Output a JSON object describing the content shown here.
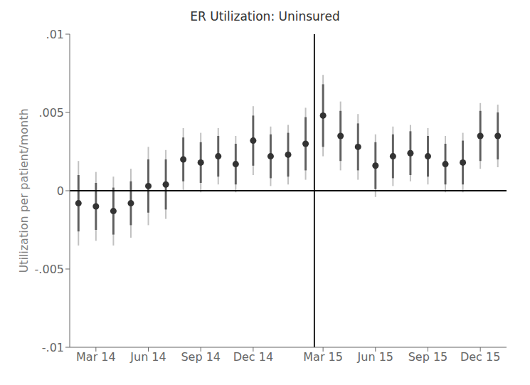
{
  "chart_data": {
    "type": "scatter",
    "title": "ER Utilization: Uninsured",
    "ylabel": "Utilization per patient/month",
    "x": [
      1,
      2,
      3,
      4,
      5,
      6,
      7,
      8,
      9,
      10,
      11,
      12,
      13,
      14,
      15,
      16,
      17,
      18,
      19,
      20,
      21,
      22,
      23,
      24,
      25
    ],
    "values": [
      -0.0008,
      -0.001,
      -0.0013,
      -0.0008,
      0.0003,
      0.0004,
      0.002,
      0.0018,
      0.0022,
      0.0017,
      0.0032,
      0.0022,
      0.0023,
      0.003,
      0.0048,
      0.0035,
      0.0028,
      0.0016,
      0.0022,
      0.0024,
      0.0022,
      0.0017,
      0.0018,
      0.0035,
      0.0035
    ],
    "ci95_lo": [
      -0.0035,
      -0.0032,
      -0.0035,
      -0.003,
      -0.0022,
      -0.0018,
      0.0,
      -0.0001,
      0.0004,
      -0.0001,
      0.001,
      0.0003,
      0.0004,
      0.0007,
      0.0022,
      0.0013,
      0.0007,
      -0.0004,
      0.0003,
      0.0006,
      0.0004,
      -0.0001,
      -0.0001,
      0.0014,
      0.0015
    ],
    "ci95_hi": [
      0.0019,
      0.0012,
      0.0009,
      0.0014,
      0.0028,
      0.0026,
      0.004,
      0.0037,
      0.004,
      0.0035,
      0.0054,
      0.0041,
      0.0042,
      0.0053,
      0.0074,
      0.0057,
      0.0049,
      0.0036,
      0.0041,
      0.0042,
      0.004,
      0.0035,
      0.0037,
      0.0056,
      0.0055
    ],
    "ci90_lo": [
      -0.0026,
      -0.0025,
      -0.0028,
      -0.0022,
      -0.0014,
      -0.0012,
      0.0006,
      0.0005,
      0.0009,
      0.0004,
      0.0016,
      0.0008,
      0.0009,
      0.0013,
      0.0028,
      0.0019,
      0.0013,
      0.0001,
      0.0008,
      0.001,
      0.0009,
      0.0004,
      0.0004,
      0.0019,
      0.002
    ],
    "ci90_hi": [
      0.001,
      0.0005,
      0.0002,
      0.0006,
      0.002,
      0.002,
      0.0034,
      0.0031,
      0.0035,
      0.003,
      0.0048,
      0.0036,
      0.0037,
      0.0047,
      0.0068,
      0.0051,
      0.0043,
      0.0031,
      0.0036,
      0.0038,
      0.0035,
      0.003,
      0.0032,
      0.0051,
      0.005
    ],
    "color": "#333333",
    "xlim": [
      0.5,
      25.5
    ],
    "xticks": [
      {
        "value": 2,
        "label": "Mar 14"
      },
      {
        "value": 5,
        "label": "Jun 14"
      },
      {
        "value": 8,
        "label": "Sep 14"
      },
      {
        "value": 11,
        "label": "Dec 14"
      },
      {
        "value": 15,
        "label": "Mar 15"
      },
      {
        "value": 18,
        "label": "Jun 15"
      },
      {
        "value": 21,
        "label": "Sep 15"
      },
      {
        "value": 24,
        "label": "Dec 15"
      }
    ],
    "ylim": [
      -0.01,
      0.01
    ],
    "yticks": [
      {
        "value": -0.01,
        "label": "-.01"
      },
      {
        "value": -0.005,
        "label": "-.005"
      },
      0,
      {
        "value": 0.005,
        "label": ".005"
      },
      {
        "value": 0.01,
        "label": ".01"
      }
    ],
    "hline": {
      "y": 0,
      "color": "#000000"
    },
    "vline": {
      "x": 14.5,
      "color": "#000000"
    },
    "grid": false
  }
}
